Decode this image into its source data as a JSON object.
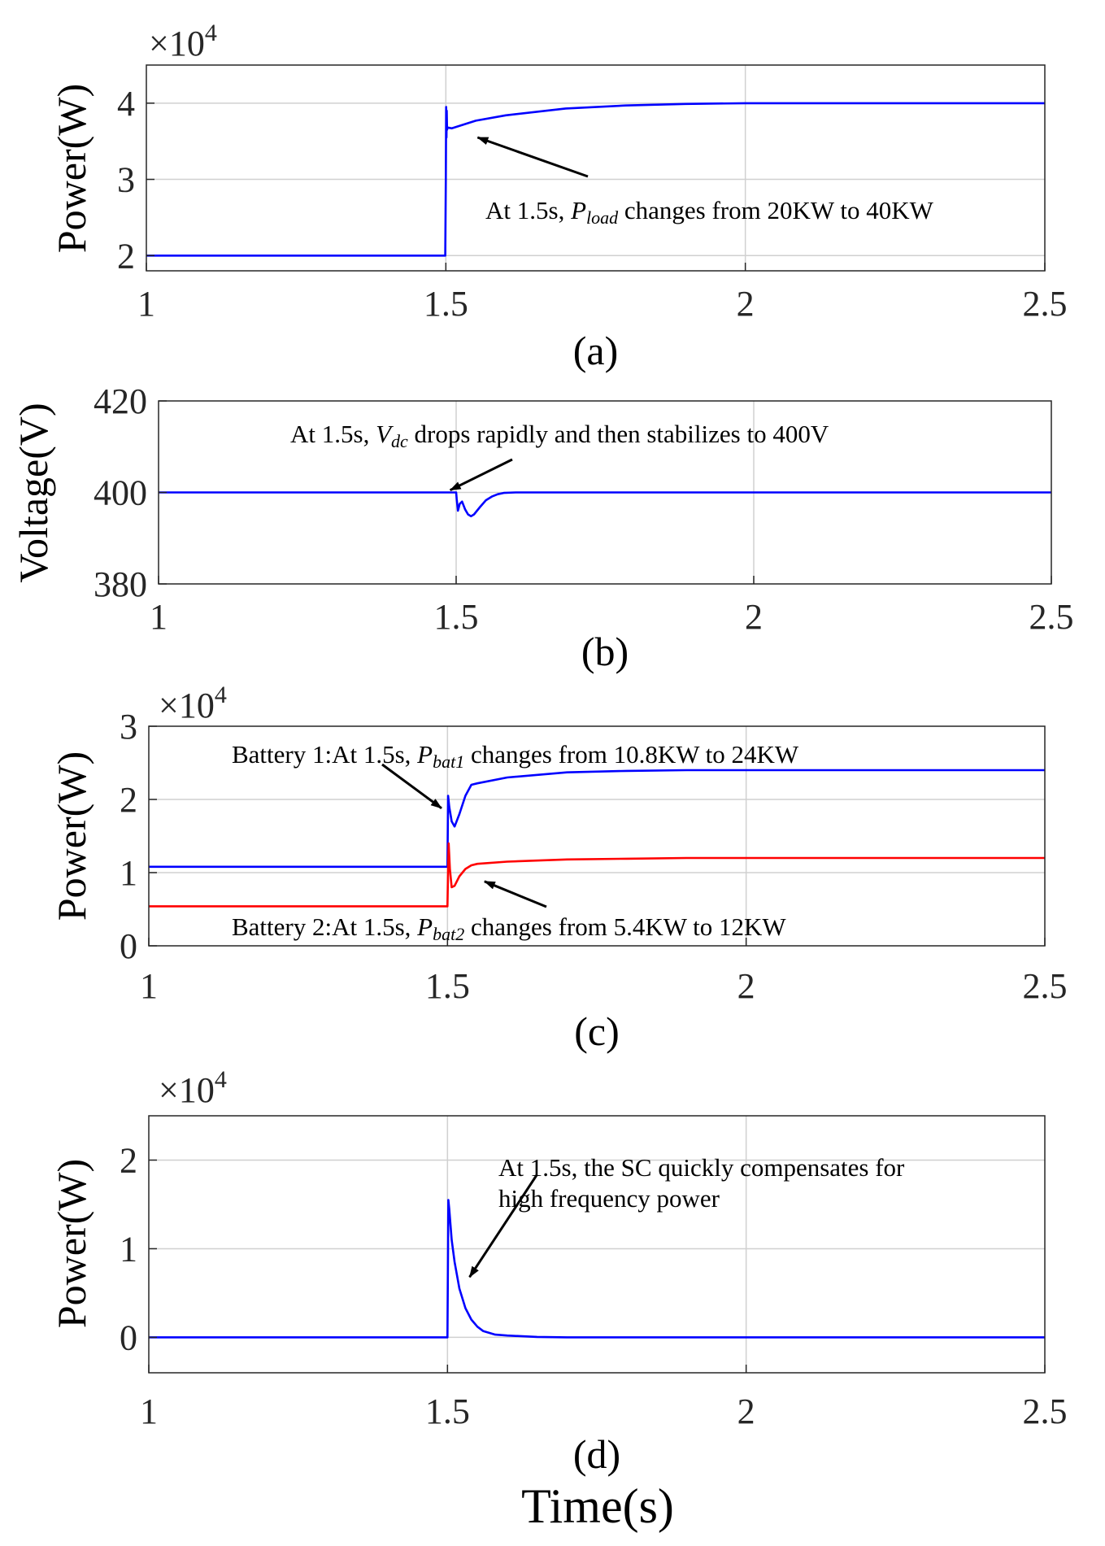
{
  "chart_data": [
    {
      "panel": "a",
      "type": "line",
      "caption": "(a)",
      "ylabel": "Power(W)",
      "xlabel": "",
      "y_exponent": "×10",
      "y_exponent_power": "4",
      "xlim": [
        1,
        2.5
      ],
      "ylim": [
        1.8,
        4.5
      ],
      "xticks": [
        1,
        1.5,
        2,
        2.5
      ],
      "xtick_labels": [
        "1",
        "1.5",
        "2",
        "2.5"
      ],
      "yticks": [
        2,
        3,
        4
      ],
      "ytick_labels": [
        "2",
        "3",
        "4"
      ],
      "grid": true,
      "series": [
        {
          "color": "#0000ff",
          "x": [
            1.0,
            1.499,
            1.5,
            1.5005,
            1.501,
            1.5015,
            1.502,
            1.503,
            1.51,
            1.55,
            1.6,
            1.7,
            1.8,
            1.9,
            2.0,
            2.2,
            2.5
          ],
          "y": [
            2.0,
            2.0,
            3.0,
            3.95,
            3.55,
            3.9,
            3.65,
            3.68,
            3.67,
            3.77,
            3.84,
            3.93,
            3.97,
            3.99,
            4.0,
            4.0,
            4.0
          ]
        }
      ],
      "annotation": {
        "text_before": "At 1.5s, ",
        "symbol": "P",
        "subscript": "load",
        "text_after": " changes from 20KW to 40KW",
        "arrow_to": [
          1.553,
          3.55
        ]
      }
    },
    {
      "panel": "b",
      "type": "line",
      "caption": "(b)",
      "ylabel": "Voltage(V)",
      "xlabel": "",
      "xlim": [
        1,
        2.5
      ],
      "ylim": [
        380,
        420
      ],
      "xticks": [
        1,
        1.5,
        2,
        2.5
      ],
      "xtick_labels": [
        "1",
        "1.5",
        "2",
        "2.5"
      ],
      "yticks": [
        380,
        400,
        420
      ],
      "ytick_labels": [
        "380",
        "400",
        "420"
      ],
      "grid": true,
      "series": [
        {
          "color": "#0000ff",
          "x": [
            1.0,
            1.5,
            1.501,
            1.503,
            1.506,
            1.51,
            1.515,
            1.52,
            1.525,
            1.53,
            1.54,
            1.55,
            1.56,
            1.57,
            1.58,
            1.6,
            2.0,
            2.5
          ],
          "y": [
            400,
            400,
            398.5,
            396.0,
            397.5,
            398.0,
            396.3,
            395.2,
            394.8,
            395.2,
            396.8,
            398.3,
            399.1,
            399.6,
            399.9,
            400,
            400,
            400
          ]
        }
      ],
      "annotation": {
        "text_before": "At 1.5s, ",
        "symbol": "V",
        "subscript": "dc",
        "text_after": " drops rapidly and then stabilizes to 400V",
        "arrow_to": [
          1.49,
          400.5
        ]
      }
    },
    {
      "panel": "c",
      "type": "line",
      "caption": "(c)",
      "ylabel": "Power(W)",
      "xlabel": "",
      "y_exponent": "×10",
      "y_exponent_power": "4",
      "xlim": [
        1,
        2.5
      ],
      "ylim": [
        0,
        3
      ],
      "xticks": [
        1,
        1.5,
        2,
        2.5
      ],
      "xtick_labels": [
        "1",
        "1.5",
        "2",
        "2.5"
      ],
      "yticks": [
        0,
        1,
        2,
        3
      ],
      "ytick_labels": [
        "0",
        "1",
        "2",
        "3"
      ],
      "grid": true,
      "series": [
        {
          "color": "#0000ff",
          "x": [
            1.0,
            1.5,
            1.501,
            1.503,
            1.507,
            1.512,
            1.52,
            1.53,
            1.54,
            1.55,
            1.6,
            1.7,
            1.8,
            1.9,
            2.0,
            2.5
          ],
          "y": [
            1.08,
            1.08,
            2.05,
            1.9,
            1.7,
            1.63,
            1.8,
            2.05,
            2.2,
            2.22,
            2.3,
            2.37,
            2.39,
            2.4,
            2.4,
            2.4
          ]
        },
        {
          "color": "#ff0000",
          "x": [
            1.0,
            1.5,
            1.501,
            1.502,
            1.504,
            1.507,
            1.512,
            1.52,
            1.53,
            1.54,
            1.55,
            1.6,
            1.7,
            1.8,
            1.9,
            2.0,
            2.5
          ],
          "y": [
            0.54,
            0.54,
            1.05,
            1.4,
            1.05,
            0.8,
            0.82,
            0.95,
            1.05,
            1.1,
            1.12,
            1.15,
            1.18,
            1.19,
            1.2,
            1.2,
            1.2
          ]
        }
      ],
      "annotations": [
        {
          "text_before": "Battery 1:At 1.5s, ",
          "symbol": "P",
          "subscript": "bat1",
          "text_after": " changes from 10.8KW to 24KW",
          "arrow_to": [
            1.49,
            1.88
          ]
        },
        {
          "text_before": "Battery 2:At 1.5s, ",
          "symbol": "P",
          "subscript": "bat2",
          "text_after": " changes from 5.4KW to 12KW",
          "arrow_to": [
            1.562,
            0.88
          ]
        }
      ]
    },
    {
      "panel": "d",
      "type": "line",
      "caption": "(d)",
      "ylabel": "Power(W)",
      "xlabel": "Time(s)",
      "y_exponent": "×10",
      "y_exponent_power": "4",
      "xlim": [
        1,
        2.5
      ],
      "ylim": [
        -0.4,
        2.5
      ],
      "xticks": [
        1,
        1.5,
        2,
        2.5
      ],
      "xtick_labels": [
        "1",
        "1.5",
        "2",
        "2.5"
      ],
      "yticks": [
        0,
        1,
        2
      ],
      "ytick_labels": [
        "0",
        "1",
        "2"
      ],
      "grid": true,
      "series": [
        {
          "color": "#0000ff",
          "x": [
            1.0,
            1.5,
            1.5015,
            1.503,
            1.507,
            1.512,
            1.52,
            1.53,
            1.54,
            1.55,
            1.56,
            1.58,
            1.6,
            1.65,
            1.7,
            2.0,
            2.5
          ],
          "y": [
            0.0,
            0.0,
            1.55,
            1.45,
            1.1,
            0.85,
            0.55,
            0.33,
            0.2,
            0.12,
            0.07,
            0.03,
            0.02,
            0.005,
            0.0,
            0.0,
            0.0
          ]
        }
      ],
      "annotation": {
        "line1": "At 1.5s, the SC quickly compensates for",
        "line2": "high frequency power",
        "arrow_to": [
          1.537,
          0.68
        ]
      }
    }
  ]
}
